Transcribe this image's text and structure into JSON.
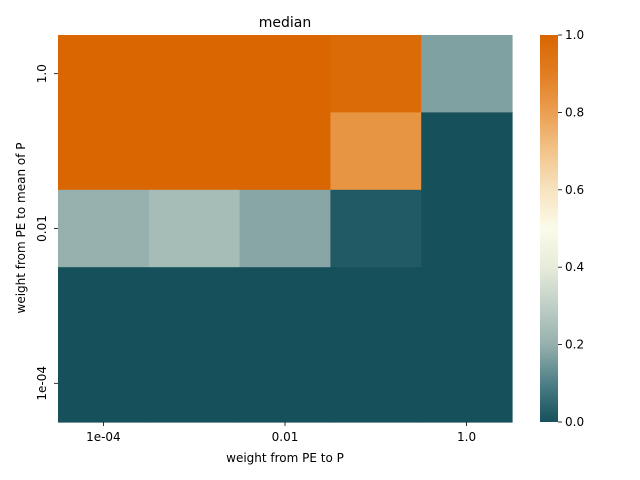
{
  "chart_data": {
    "type": "heatmap",
    "title": "median",
    "xlabel": "weight from PE to P",
    "ylabel": "weight from PE to mean of P",
    "x_tick_labels": [
      "1e-04",
      "0.01",
      "1.0"
    ],
    "y_tick_labels": [
      "1.0",
      "0.01",
      "1e-04"
    ],
    "rows": 5,
    "cols": 5,
    "values": [
      [
        1.0,
        1.0,
        1.0,
        0.98,
        0.17
      ],
      [
        1.0,
        1.0,
        1.0,
        0.83,
        0.0
      ],
      [
        0.2,
        0.24,
        0.18,
        0.02,
        0.0
      ],
      [
        0.0,
        0.0,
        0.0,
        0.0,
        0.0
      ],
      [
        0.0,
        0.0,
        0.0,
        0.0,
        0.0
      ]
    ],
    "colorbar": {
      "range": [
        0,
        1
      ],
      "ticks": [
        0.0,
        0.2,
        0.4,
        0.6,
        0.8,
        1.0
      ],
      "tick_labels": [
        "0.0",
        "0.2",
        "0.4",
        "0.6",
        "0.8",
        "1.0"
      ]
    },
    "colormap": {
      "stops": [
        {
          "v": 0.0,
          "color": "#16515b"
        },
        {
          "v": 0.1,
          "color": "#4d7f86"
        },
        {
          "v": 0.2,
          "color": "#96b0ad"
        },
        {
          "v": 0.3,
          "color": "#bfcfc6"
        },
        {
          "v": 0.4,
          "color": "#e6ecd9"
        },
        {
          "v": 0.5,
          "color": "#fbfbe9"
        },
        {
          "v": 0.6,
          "color": "#f7e3c0"
        },
        {
          "v": 0.7,
          "color": "#f2c48a"
        },
        {
          "v": 0.8,
          "color": "#eb9f51"
        },
        {
          "v": 0.9,
          "color": "#e27d22"
        },
        {
          "v": 1.0,
          "color": "#d96600"
        }
      ]
    }
  }
}
